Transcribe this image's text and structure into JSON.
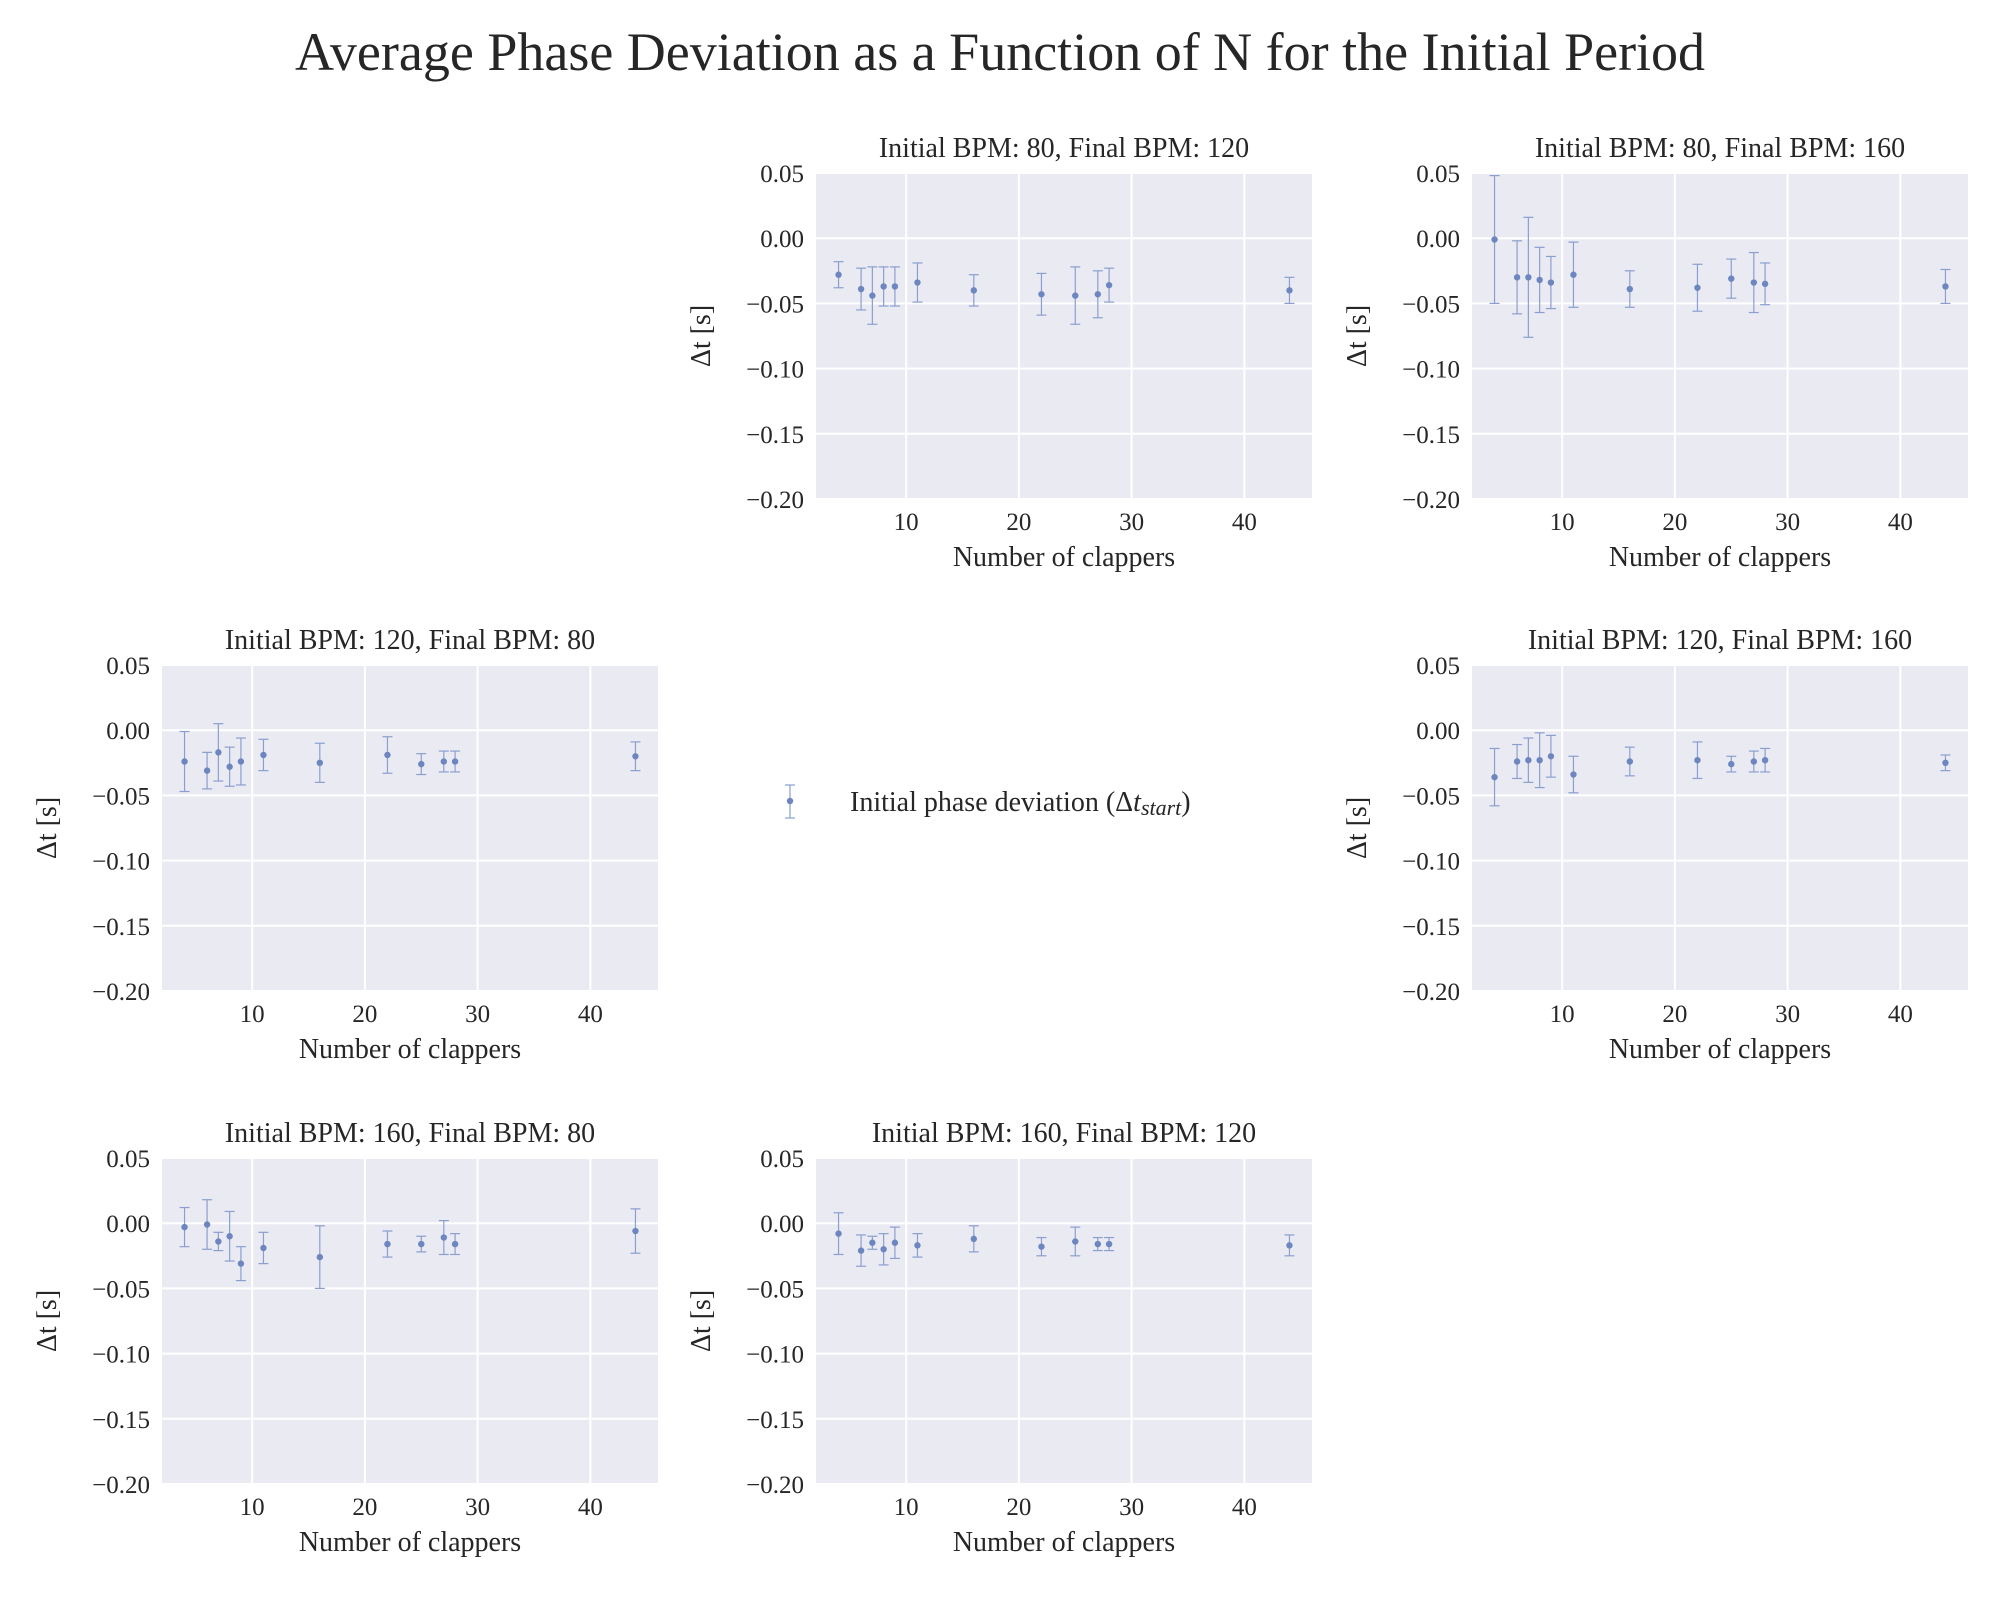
{
  "figure_title": "Average Phase Deviation as a Function of N for the Initial Period",
  "legend": {
    "label_prefix": "Initial phase deviation (Δ",
    "label_italic": "t",
    "label_sub": "start",
    "label_suffix": ")"
  },
  "colors": {
    "panel_bg": "#eaeaf2",
    "marker": "#6d86bf",
    "errorbar": "#8a9fcf",
    "grid": "#ffffff"
  },
  "chart_data": [
    {
      "type": "scatter",
      "title": "Initial BPM: 80, Final BPM: 120",
      "xlabel": "Number of clappers",
      "ylabel": "Δt [s]",
      "xlim": [
        2,
        46
      ],
      "ylim": [
        -0.2,
        0.05
      ],
      "xticks": [
        10,
        20,
        30,
        40
      ],
      "yticks": [
        0.05,
        0.0,
        -0.05,
        -0.1,
        -0.15,
        -0.2
      ],
      "ytick_labels": [
        "0.05",
        "0.00",
        "−0.05",
        "−0.10",
        "−0.15",
        "−0.20"
      ],
      "grid": true,
      "x": [
        4,
        6,
        7,
        8,
        9,
        11,
        16,
        22,
        25,
        27,
        28,
        44
      ],
      "y": [
        -0.028,
        -0.039,
        -0.044,
        -0.037,
        -0.037,
        -0.034,
        -0.04,
        -0.043,
        -0.044,
        -0.043,
        -0.036,
        -0.04
      ],
      "err": [
        0.01,
        0.016,
        0.022,
        0.015,
        0.015,
        0.015,
        0.012,
        0.016,
        0.022,
        0.018,
        0.013,
        0.01
      ]
    },
    {
      "type": "scatter",
      "title": "Initial BPM: 80, Final BPM: 160",
      "xlabel": "Number of clappers",
      "ylabel": "Δt [s]",
      "xlim": [
        2,
        46
      ],
      "ylim": [
        -0.2,
        0.05
      ],
      "xticks": [
        10,
        20,
        30,
        40
      ],
      "yticks": [
        0.05,
        0.0,
        -0.05,
        -0.1,
        -0.15,
        -0.2
      ],
      "ytick_labels": [
        "0.05",
        "0.00",
        "−0.05",
        "−0.10",
        "−0.15",
        "−0.20"
      ],
      "grid": true,
      "x": [
        4,
        6,
        7,
        8,
        9,
        11,
        16,
        22,
        25,
        27,
        28,
        44
      ],
      "y": [
        -0.001,
        -0.03,
        -0.03,
        -0.032,
        -0.034,
        -0.028,
        -0.039,
        -0.038,
        -0.031,
        -0.034,
        -0.035,
        -0.037
      ],
      "err": [
        0.049,
        0.028,
        0.046,
        0.025,
        0.02,
        0.025,
        0.014,
        0.018,
        0.015,
        0.023,
        0.016,
        0.013
      ]
    },
    {
      "type": "scatter",
      "title": "Initial BPM: 120, Final BPM: 80",
      "xlabel": "Number of clappers",
      "ylabel": "Δt [s]",
      "xlim": [
        2,
        46
      ],
      "ylim": [
        -0.2,
        0.05
      ],
      "xticks": [
        10,
        20,
        30,
        40
      ],
      "yticks": [
        0.05,
        0.0,
        -0.05,
        -0.1,
        -0.15,
        -0.2
      ],
      "ytick_labels": [
        "0.05",
        "0.00",
        "−0.05",
        "−0.10",
        "−0.15",
        "−0.20"
      ],
      "grid": true,
      "x": [
        4,
        6,
        7,
        8,
        9,
        11,
        16,
        22,
        25,
        27,
        28,
        44
      ],
      "y": [
        -0.024,
        -0.031,
        -0.017,
        -0.028,
        -0.024,
        -0.019,
        -0.025,
        -0.019,
        -0.026,
        -0.024,
        -0.024,
        -0.02
      ],
      "err": [
        0.023,
        0.014,
        0.022,
        0.015,
        0.018,
        0.012,
        0.015,
        0.014,
        0.008,
        0.008,
        0.008,
        0.011
      ]
    },
    {
      "type": "scatter",
      "title": "Initial BPM: 120, Final BPM: 160",
      "xlabel": "Number of clappers",
      "ylabel": "Δt [s]",
      "xlim": [
        2,
        46
      ],
      "ylim": [
        -0.2,
        0.05
      ],
      "xticks": [
        10,
        20,
        30,
        40
      ],
      "yticks": [
        0.05,
        0.0,
        -0.05,
        -0.1,
        -0.15,
        -0.2
      ],
      "ytick_labels": [
        "0.05",
        "0.00",
        "−0.05",
        "−0.10",
        "−0.15",
        "−0.20"
      ],
      "grid": true,
      "x": [
        4,
        6,
        7,
        8,
        9,
        11,
        16,
        22,
        25,
        27,
        28,
        44
      ],
      "y": [
        -0.036,
        -0.024,
        -0.023,
        -0.023,
        -0.02,
        -0.034,
        -0.024,
        -0.023,
        -0.026,
        -0.024,
        -0.023,
        -0.025
      ],
      "err": [
        0.022,
        0.013,
        0.017,
        0.021,
        0.016,
        0.014,
        0.011,
        0.014,
        0.006,
        0.008,
        0.009,
        0.006
      ]
    },
    {
      "type": "scatter",
      "title": "Initial BPM: 160, Final BPM: 80",
      "xlabel": "Number of clappers",
      "ylabel": "Δt [s]",
      "xlim": [
        2,
        46
      ],
      "ylim": [
        -0.2,
        0.05
      ],
      "xticks": [
        10,
        20,
        30,
        40
      ],
      "yticks": [
        0.05,
        0.0,
        -0.05,
        -0.1,
        -0.15,
        -0.2
      ],
      "ytick_labels": [
        "0.05",
        "0.00",
        "−0.05",
        "−0.10",
        "−0.15",
        "−0.20"
      ],
      "grid": true,
      "x": [
        4,
        6,
        7,
        8,
        9,
        11,
        16,
        22,
        25,
        27,
        28,
        44
      ],
      "y": [
        -0.003,
        -0.001,
        -0.014,
        -0.01,
        -0.031,
        -0.019,
        -0.026,
        -0.016,
        -0.016,
        -0.011,
        -0.016,
        -0.006
      ],
      "err": [
        0.015,
        0.019,
        0.007,
        0.019,
        0.013,
        0.012,
        0.024,
        0.01,
        0.006,
        0.013,
        0.008,
        0.017
      ]
    },
    {
      "type": "scatter",
      "title": "Initial BPM: 160, Final BPM: 120",
      "xlabel": "Number of clappers",
      "ylabel": "Δt [s]",
      "xlim": [
        2,
        46
      ],
      "ylim": [
        -0.2,
        0.05
      ],
      "xticks": [
        10,
        20,
        30,
        40
      ],
      "yticks": [
        0.05,
        0.0,
        -0.05,
        -0.1,
        -0.15,
        -0.2
      ],
      "ytick_labels": [
        "0.05",
        "0.00",
        "−0.05",
        "−0.10",
        "−0.15",
        "−0.20"
      ],
      "grid": true,
      "x": [
        4,
        6,
        7,
        8,
        9,
        11,
        16,
        22,
        25,
        27,
        28,
        44
      ],
      "y": [
        -0.008,
        -0.021,
        -0.015,
        -0.02,
        -0.015,
        -0.017,
        -0.012,
        -0.018,
        -0.014,
        -0.016,
        -0.016,
        -0.017
      ],
      "err": [
        0.016,
        0.012,
        0.005,
        0.012,
        0.012,
        0.009,
        0.01,
        0.007,
        0.011,
        0.005,
        0.005,
        0.008
      ]
    }
  ]
}
